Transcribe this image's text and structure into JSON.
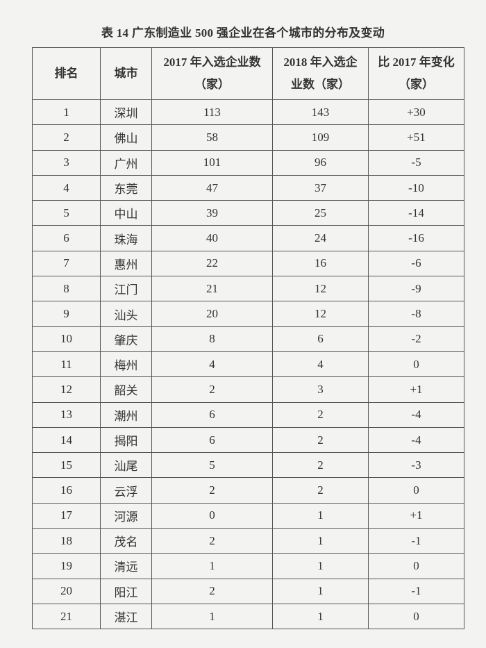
{
  "title": "表 14  广东制造业 500 强企业在各个城市的分布及变动",
  "headers": [
    "排名",
    "城市",
    "2017 年入选企业数（家）",
    "2018 年入选企业数（家）",
    "比 2017 年变化（家）"
  ],
  "rows": [
    [
      "1",
      "深圳",
      "113",
      "143",
      "+30"
    ],
    [
      "2",
      "佛山",
      "58",
      "109",
      "+51"
    ],
    [
      "3",
      "广州",
      "101",
      "96",
      "-5"
    ],
    [
      "4",
      "东莞",
      "47",
      "37",
      "-10"
    ],
    [
      "5",
      "中山",
      "39",
      "25",
      "-14"
    ],
    [
      "6",
      "珠海",
      "40",
      "24",
      "-16"
    ],
    [
      "7",
      "惠州",
      "22",
      "16",
      "-6"
    ],
    [
      "8",
      "江门",
      "21",
      "12",
      "-9"
    ],
    [
      "9",
      "汕头",
      "20",
      "12",
      "-8"
    ],
    [
      "10",
      "肇庆",
      "8",
      "6",
      "-2"
    ],
    [
      "11",
      "梅州",
      "4",
      "4",
      "0"
    ],
    [
      "12",
      "韶关",
      "2",
      "3",
      "+1"
    ],
    [
      "13",
      "潮州",
      "6",
      "2",
      "-4"
    ],
    [
      "14",
      "揭阳",
      "6",
      "2",
      "-4"
    ],
    [
      "15",
      "汕尾",
      "5",
      "2",
      "-3"
    ],
    [
      "16",
      "云浮",
      "2",
      "2",
      "0"
    ],
    [
      "17",
      "河源",
      "0",
      "1",
      "+1"
    ],
    [
      "18",
      "茂名",
      "2",
      "1",
      "-1"
    ],
    [
      "19",
      "清远",
      "1",
      "1",
      "0"
    ],
    [
      "20",
      "阳江",
      "2",
      "1",
      "-1"
    ],
    [
      "21",
      "湛江",
      "1",
      "1",
      "0"
    ]
  ]
}
